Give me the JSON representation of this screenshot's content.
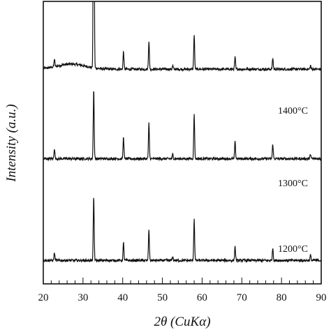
{
  "chart_data": {
    "type": "line",
    "xlabel": "2θ (CuKα)",
    "ylabel": "Intensity (a.u.)",
    "xlim": [
      20,
      90
    ],
    "xticks": [
      "20",
      "30",
      "40",
      "50",
      "60",
      "70",
      "80",
      "90"
    ],
    "y_tick_labels": "none",
    "grid": false,
    "colors": {
      "line": "#111111",
      "axis": "#111111"
    },
    "series": [
      {
        "name": "1400°C",
        "baseline": 0.76,
        "peaks": [
          {
            "x": 22.8,
            "height": 0.026
          },
          {
            "x": 32.7,
            "height": 1.2
          },
          {
            "x": 40.2,
            "height": 0.063
          },
          {
            "x": 46.6,
            "height": 0.1
          },
          {
            "x": 52.6,
            "height": 0.012
          },
          {
            "x": 58.0,
            "height": 0.122
          },
          {
            "x": 68.3,
            "height": 0.042
          },
          {
            "x": 77.8,
            "height": 0.039
          },
          {
            "x": 87.3,
            "height": 0.013
          }
        ]
      },
      {
        "name": "1300°C",
        "baseline": 0.443,
        "peaks": [
          {
            "x": 22.8,
            "height": 0.037
          },
          {
            "x": 32.7,
            "height": 0.25
          },
          {
            "x": 40.2,
            "height": 0.078
          },
          {
            "x": 46.6,
            "height": 0.125
          },
          {
            "x": 52.6,
            "height": 0.016
          },
          {
            "x": 58.0,
            "height": 0.16
          },
          {
            "x": 68.3,
            "height": 0.06
          },
          {
            "x": 77.8,
            "height": 0.052
          },
          {
            "x": 87.3,
            "height": 0.017
          }
        ]
      },
      {
        "name": "1200°C",
        "baseline": 0.083,
        "peaks": [
          {
            "x": 22.8,
            "height": 0.027
          },
          {
            "x": 32.7,
            "height": 0.225
          },
          {
            "x": 40.2,
            "height": 0.062
          },
          {
            "x": 46.6,
            "height": 0.11
          },
          {
            "x": 52.6,
            "height": 0.012
          },
          {
            "x": 58.0,
            "height": 0.147
          },
          {
            "x": 68.3,
            "height": 0.05
          },
          {
            "x": 77.8,
            "height": 0.044
          },
          {
            "x": 87.3,
            "height": 0.019
          }
        ]
      }
    ]
  }
}
